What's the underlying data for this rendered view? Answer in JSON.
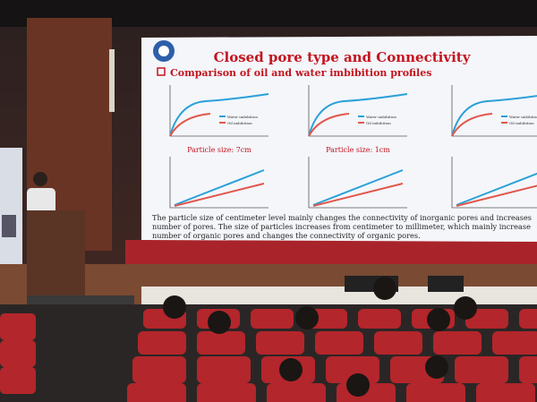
{
  "slide": {
    "title": "Closed pore type and Connectivity",
    "subtitle": "Comparison of oil and water imbibition profiles",
    "charts": [
      {
        "caption": "Particle size: 7cm",
        "legend": [
          "Water imbibition",
          "Oil imbibition"
        ]
      },
      {
        "caption": "Particle size: 1cm",
        "legend": [
          "Water imbibition",
          "Oil imbibition"
        ]
      },
      {
        "legend": [
          "Water imbibition",
          "Oil imbibition"
        ]
      }
    ],
    "text_lines": [
      "The particle size of centimeter level mainly changes the connectivity of inorganic pores and increases",
      "number of pores. The size of particles increases from centimeter to millimeter, which mainly increase",
      "number of organic pores and changes the connectivity of organic pores."
    ]
  }
}
